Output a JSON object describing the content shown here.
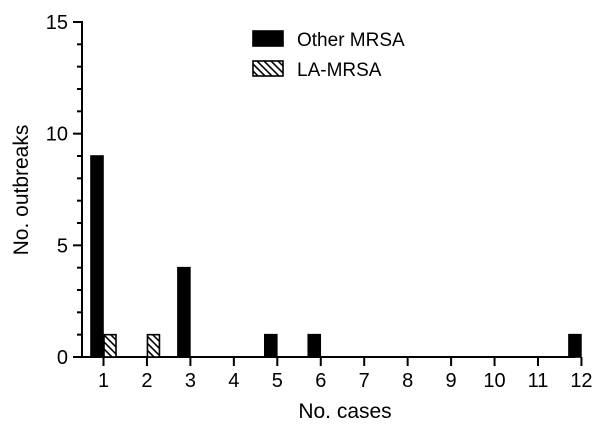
{
  "chart_data": {
    "type": "bar",
    "xlabel": "No. cases",
    "ylabel": "No. outbreaks",
    "ylim": [
      0,
      15
    ],
    "yticks": [
      "0",
      "5",
      "10",
      "15"
    ],
    "categories": [
      "1",
      "2",
      "3",
      "4",
      "5",
      "6",
      "7",
      "8",
      "9",
      "10",
      "11",
      "12"
    ],
    "series": [
      {
        "name": "Other MRSA",
        "fill": "solid",
        "color": "#000000",
        "values": [
          9,
          0,
          4,
          0,
          1,
          1,
          0,
          0,
          0,
          0,
          0,
          1
        ]
      },
      {
        "name": "LA-MRSA",
        "fill": "hatched",
        "color": "#000000",
        "values": [
          1,
          1,
          0,
          0,
          0,
          0,
          0,
          0,
          0,
          0,
          0,
          0
        ]
      }
    ],
    "legend_position": "top-center",
    "grid": false
  }
}
